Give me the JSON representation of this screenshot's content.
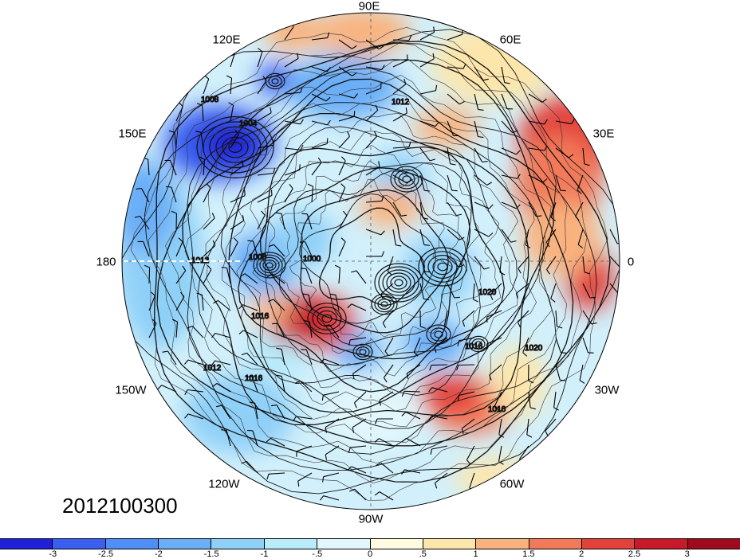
{
  "map": {
    "projection": "north-polar-stereographic",
    "date_stamp": "2012100300",
    "longitude_labels": [
      {
        "text": "90E",
        "lon": 90
      },
      {
        "text": "60E",
        "lon": 60
      },
      {
        "text": "120E",
        "lon": 120
      },
      {
        "text": "150E",
        "lon": 150
      },
      {
        "text": "30E",
        "lon": 30
      },
      {
        "text": "180",
        "lon": 180
      },
      {
        "text": "0",
        "lon": 0
      },
      {
        "text": "150W",
        "lon": -150
      },
      {
        "text": "30W",
        "lon": -30
      },
      {
        "text": "120W",
        "lon": -120
      },
      {
        "text": "60W",
        "lon": -60
      },
      {
        "text": "90W",
        "lon": -90
      }
    ],
    "isobar_labels": [
      "1008",
      "1004",
      "1012",
      "1008",
      "1000",
      "1016",
      "1012",
      "1016",
      "1020",
      "1016",
      "1020",
      "1016",
      "1012"
    ],
    "anomaly_features": [
      {
        "label": "deep-low-siberia-east",
        "sign": "negative",
        "magnitude": -3
      },
      {
        "label": "warm-europe",
        "sign": "positive",
        "magnitude": 3
      },
      {
        "label": "warm-arctic-pacific",
        "sign": "positive",
        "magnitude": 2.5
      },
      {
        "label": "warm-north-atlantic",
        "sign": "positive",
        "magnitude": 2
      },
      {
        "label": "cold-pacific",
        "sign": "negative",
        "magnitude": -2
      }
    ]
  },
  "colorbar": {
    "colors": [
      "#2020d8",
      "#3a5ef0",
      "#4f8ef5",
      "#6aaef7",
      "#8fd0f8",
      "#b8ebfb",
      "#e2f7fc",
      "#fffbe0",
      "#fde6ac",
      "#f9b27e",
      "#f27a5a",
      "#e3423c",
      "#c8182a",
      "#a00a1e"
    ],
    "tick_labels": [
      "-3",
      "-2.5",
      "-2",
      "-1.5",
      "-1",
      "-.5",
      "0",
      ".5",
      "1",
      "1.5",
      "2",
      "2.5",
      "3"
    ]
  }
}
